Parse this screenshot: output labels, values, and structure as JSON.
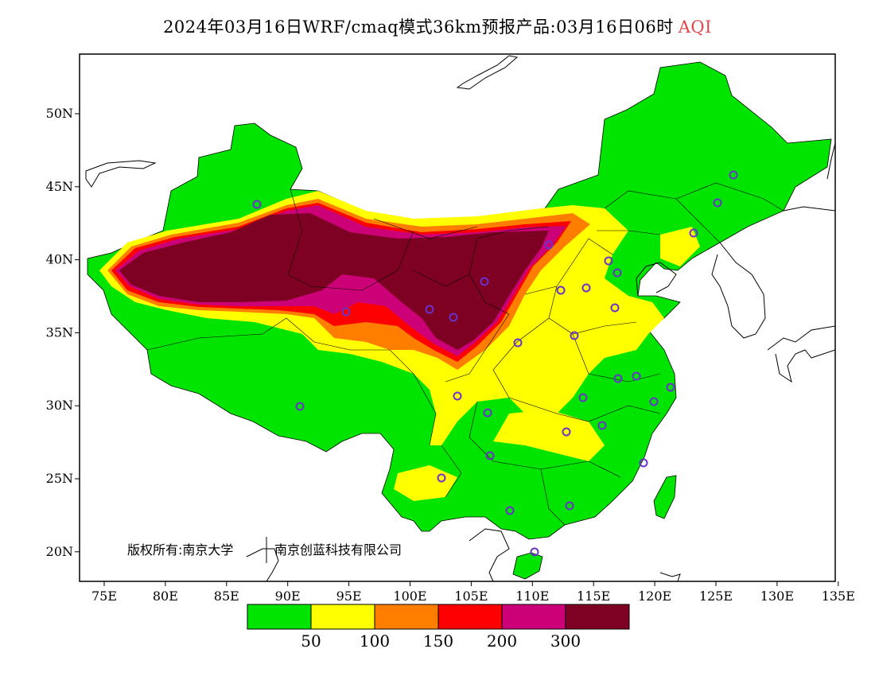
{
  "title": {
    "prefix": "2024年03月16日WRF/cmaq模式36km预报产品:03月16日06时",
    "variable": "AQI"
  },
  "axes": {
    "x_ticks": [
      "75E",
      "80E",
      "85E",
      "90E",
      "95E",
      "100E",
      "105E",
      "110E",
      "115E",
      "120E",
      "125E",
      "130E",
      "135E"
    ],
    "y_ticks": [
      "50N",
      "45N",
      "40N",
      "35N",
      "30N",
      "25N",
      "20N"
    ]
  },
  "credit": {
    "left": "版权所有:南京大学",
    "right": "南京创蓝科技有限公司"
  },
  "colorbar": {
    "colors": [
      "#00e400",
      "#ffff00",
      "#ff7e00",
      "#ff0000",
      "#cc0077",
      "#7e0023"
    ],
    "thresholds": [
      "50",
      "100",
      "150",
      "200",
      "300"
    ]
  },
  "map": {
    "land_color": "#00e400",
    "station_marker_color": "#6a33cc"
  }
}
